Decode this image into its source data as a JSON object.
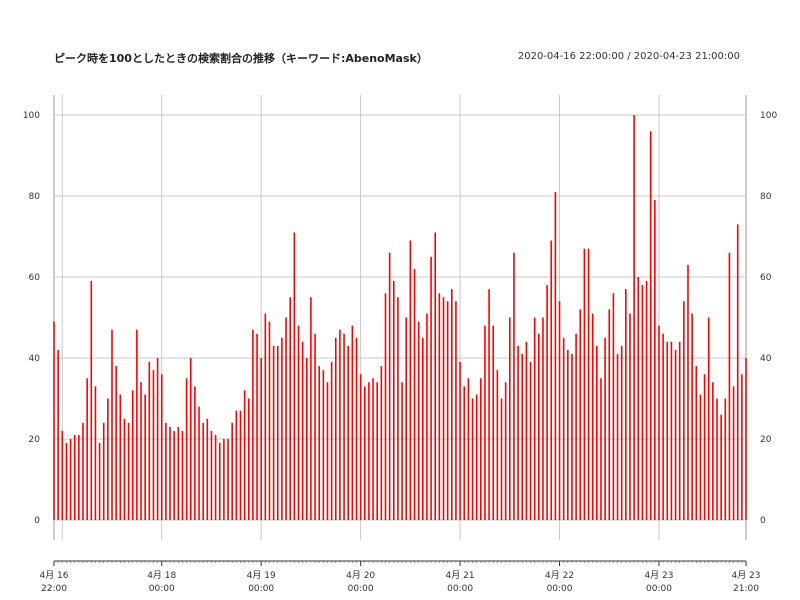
{
  "chart_data": {
    "type": "bar",
    "title": "ピーク時を100としたときの検索割合の推移（キーワード:AbenoMask）",
    "date_range": "2020-04-16 22:00:00 / 2020-04-23 21:00:00",
    "xlabel": "",
    "ylabel": "",
    "ylim": [
      0,
      100
    ],
    "y_ticks": [
      0,
      20,
      40,
      60,
      80,
      100
    ],
    "x_ticks": [
      {
        "line1": "4月 16",
        "line2": "22:00",
        "at": "2020-04-16 22:00"
      },
      {
        "line1": "4月 18",
        "line2": "00:00",
        "at": "2020-04-18 00:00"
      },
      {
        "line1": "4月 19",
        "line2": "00:00",
        "at": "2020-04-19 00:00"
      },
      {
        "line1": "4月 20",
        "line2": "00:00",
        "at": "2020-04-20 00:00"
      },
      {
        "line1": "4月 21",
        "line2": "00:00",
        "at": "2020-04-21 00:00"
      },
      {
        "line1": "4月 22",
        "line2": "00:00",
        "at": "2020-04-22 00:00"
      },
      {
        "line1": "4月 23",
        "line2": "00:00",
        "at": "2020-04-23 00:00"
      },
      {
        "line1": "4月 23",
        "line2": "21:00",
        "at": "2020-04-23 21:00"
      }
    ],
    "bar_color": "#ff0000",
    "grid": true,
    "series": [
      {
        "start": "2020-04-16 22:00",
        "interval_hours": 1,
        "values": [
          49,
          42,
          22,
          19,
          20,
          21,
          21,
          24,
          35,
          59,
          33,
          19,
          24,
          30,
          47,
          38,
          31,
          25,
          24,
          32,
          47,
          34,
          31,
          39,
          37,
          40,
          36,
          24,
          23,
          22,
          23,
          22,
          35,
          40,
          33,
          28,
          24,
          25,
          22,
          21,
          19,
          20,
          20,
          24,
          27,
          27,
          32,
          30,
          47,
          46,
          40,
          51,
          49,
          43,
          43,
          45,
          50,
          55,
          71,
          48,
          44,
          40,
          55,
          46,
          38,
          37,
          34,
          39,
          45,
          47,
          46,
          43,
          48,
          45,
          36,
          33,
          34,
          35,
          34,
          38,
          56,
          66,
          59,
          55,
          34,
          50,
          69,
          62,
          49,
          45,
          51,
          65,
          71,
          56,
          55,
          54,
          57,
          54,
          39,
          33,
          35,
          30,
          31,
          35,
          48,
          57,
          48,
          37,
          30,
          34,
          50,
          66,
          43,
          41,
          44,
          39,
          50,
          46,
          50,
          58,
          69,
          81,
          54,
          45,
          42,
          41,
          46,
          52,
          67,
          67,
          51,
          43,
          35,
          45,
          52,
          56,
          41,
          43,
          57,
          51,
          100,
          60,
          58,
          59,
          96,
          79,
          48,
          46,
          44,
          44,
          42,
          44,
          54,
          63,
          51,
          38,
          31,
          36,
          50,
          34,
          30,
          26,
          30,
          66,
          33,
          73,
          36,
          40
        ]
      }
    ]
  }
}
